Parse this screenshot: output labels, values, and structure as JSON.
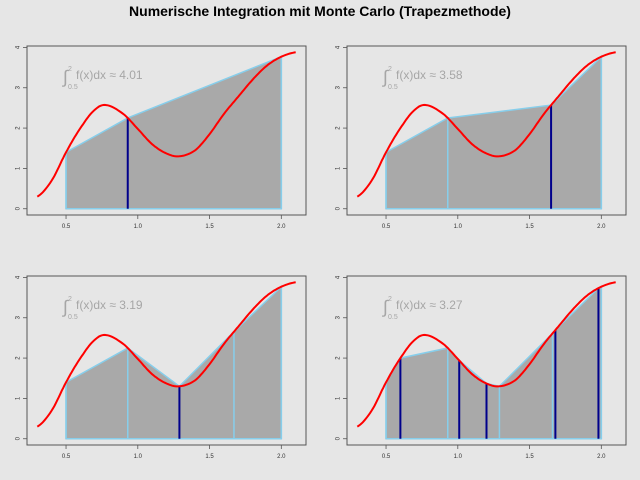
{
  "chart_data": [
    {
      "type": "area",
      "panel": 1,
      "annotation": {
        "integral_sign": "∫",
        "lower": "0.5",
        "upper": "2",
        "expr": "f(x)dx",
        "approx": "≈",
        "value": "4.01"
      },
      "nodes": [
        0.5,
        0.93,
        2.0
      ],
      "new_nodes": [
        0.93
      ]
    },
    {
      "type": "area",
      "panel": 2,
      "annotation": {
        "integral_sign": "∫",
        "lower": "0.5",
        "upper": "2",
        "expr": "f(x)dx",
        "approx": "≈",
        "value": "3.58"
      },
      "nodes": [
        0.5,
        0.93,
        1.65,
        2.0
      ],
      "new_nodes": [
        1.65
      ]
    },
    {
      "type": "area",
      "panel": 3,
      "annotation": {
        "integral_sign": "∫",
        "lower": "0.5",
        "upper": "2",
        "expr": "f(x)dx",
        "approx": "≈",
        "value": "3.19"
      },
      "nodes": [
        0.5,
        0.93,
        1.29,
        1.67,
        2.0
      ],
      "new_nodes": [
        1.29
      ]
    },
    {
      "type": "area",
      "panel": 4,
      "annotation": {
        "integral_sign": "∫",
        "lower": "0.5",
        "upper": "2",
        "expr": "f(x)dx",
        "approx": "≈",
        "value": "3.27"
      },
      "nodes": [
        0.5,
        0.6,
        0.93,
        1.01,
        1.2,
        1.29,
        1.66,
        1.68,
        1.98,
        2.0
      ],
      "new_nodes": [
        0.6,
        1.01,
        1.2,
        1.68,
        1.98
      ]
    }
  ],
  "title": "Numerische Integration mit Monte Carlo (Trapezmethode)",
  "curve": {
    "x": [
      0.3,
      0.4,
      0.5,
      0.6,
      0.7,
      0.78,
      0.9,
      1.0,
      1.1,
      1.2,
      1.29,
      1.4,
      1.5,
      1.6,
      1.7,
      1.8,
      1.9,
      2.0,
      2.1
    ],
    "y": [
      0.3,
      0.7,
      1.4,
      2.0,
      2.45,
      2.57,
      2.35,
      1.98,
      1.6,
      1.37,
      1.3,
      1.45,
      1.85,
      2.35,
      2.78,
      3.2,
      3.55,
      3.77,
      3.88
    ]
  },
  "axes": {
    "xlim": [
      0.3,
      2.1
    ],
    "ylim": [
      0,
      3.88
    ],
    "xticks": [
      "0.5",
      "1.0",
      "1.5",
      "2.0"
    ],
    "yticks": [
      "0",
      "1",
      "2",
      "3",
      "4"
    ],
    "grid": false
  },
  "colors": {
    "fill": "#a9a9a9",
    "trapezoid_edge": "#87ceeb",
    "new_node": "#00008b",
    "curve": "#ff0000",
    "annotation": "#a6a6a6",
    "background": "#e6e6e6"
  }
}
